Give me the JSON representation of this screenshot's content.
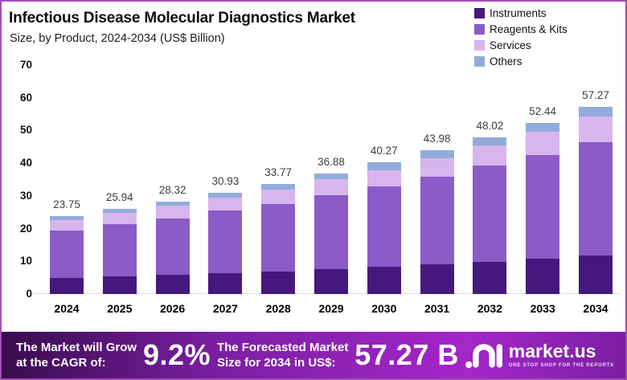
{
  "header": {
    "title": "Infectious Disease Molecular Diagnostics Market",
    "subtitle": "Size, by Product, 2024-2034 (US$ Billion)"
  },
  "chart_data": {
    "type": "bar",
    "stacked": true,
    "title": "Infectious Disease Molecular Diagnostics Market",
    "subtitle": "Size, by Product, 2024-2034 (US$ Billion)",
    "unit": "US$ Billion",
    "categories": [
      "2024",
      "2025",
      "2026",
      "2027",
      "2028",
      "2029",
      "2030",
      "2031",
      "2032",
      "2033",
      "2034"
    ],
    "series": [
      {
        "name": "Instruments",
        "color": "#45187E",
        "values": [
          5.0,
          5.5,
          6.0,
          6.4,
          7.0,
          7.7,
          8.4,
          9.2,
          9.8,
          10.8,
          11.9
        ]
      },
      {
        "name": "Reagents & Kits",
        "color": "#8B5BC8",
        "values": [
          14.3,
          15.8,
          17.2,
          19.2,
          20.5,
          22.4,
          24.5,
          26.6,
          29.4,
          31.8,
          34.5
        ]
      },
      {
        "name": "Services",
        "color": "#D6B6EC",
        "values": [
          3.2,
          3.4,
          3.9,
          4.0,
          4.5,
          5.0,
          5.0,
          5.7,
          6.3,
          7.0,
          8.0
        ]
      },
      {
        "name": "Others",
        "color": "#92ABDB",
        "values": [
          1.25,
          1.24,
          1.22,
          1.33,
          1.77,
          1.78,
          2.37,
          2.48,
          2.52,
          2.84,
          2.87
        ]
      }
    ],
    "totals": [
      23.75,
      25.94,
      28.32,
      30.93,
      33.77,
      36.88,
      40.27,
      43.98,
      48.02,
      52.44,
      57.27
    ],
    "ylim": [
      0,
      70
    ],
    "yticks": [
      0,
      10,
      20,
      30,
      40,
      50,
      60,
      70
    ],
    "grid": false,
    "legend_position": "top-right"
  },
  "banner": {
    "cagr_label_line1": "The Market will Grow",
    "cagr_label_line2": "at the CAGR of:",
    "cagr_value": "9.2%",
    "forecast_label_line1": "The Forecasted Market",
    "forecast_label_line2": "Size for 2034 in US$:",
    "forecast_value": "57.27 B",
    "brand": {
      "name": "market.us",
      "tagline": "ONE STOP SHOP FOR THE REPORTS"
    }
  },
  "colors": {
    "border": "#A14CB5",
    "banner_gradient_start": "#380C4E",
    "banner_gradient_mid": "#7B1FA2",
    "banner_gradient_end": "#A426C9"
  }
}
